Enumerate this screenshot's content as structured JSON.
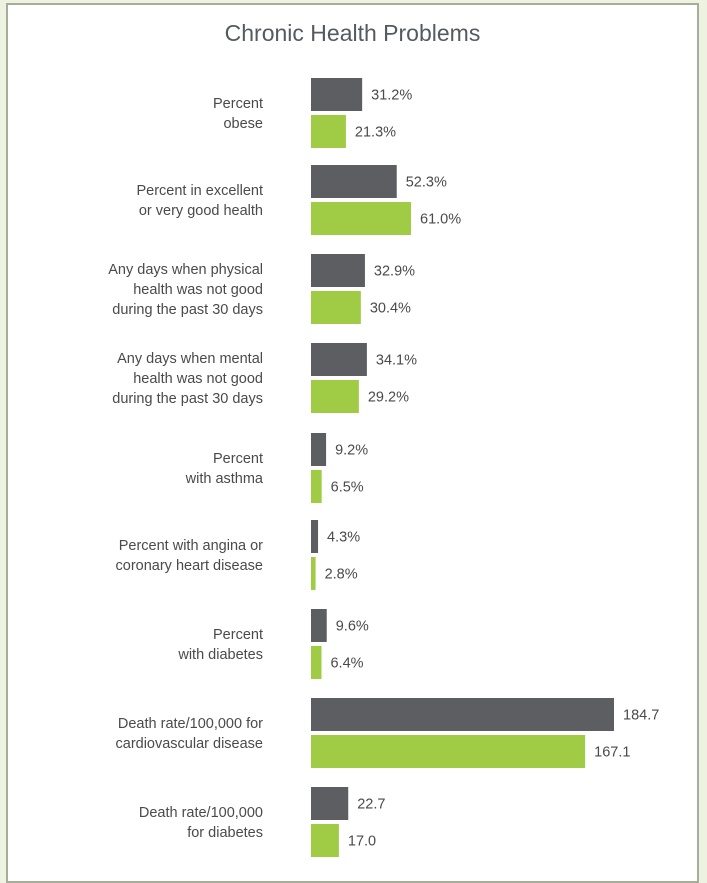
{
  "colors": {
    "page_background": "#eef3e1",
    "card_background": "#ffffff",
    "card_border": "#a8ad9a",
    "series_dark": "#5d5e62",
    "series_green": "#a0cb45",
    "text": "#4a4a4a"
  },
  "chart_data": {
    "type": "bar",
    "orientation": "horizontal",
    "title": "Chronic Health Problems",
    "xlabel": "",
    "ylabel": "",
    "grid": false,
    "legend": false,
    "categories": [
      [
        "Percent",
        "obese"
      ],
      [
        "Percent in excellent",
        "or very good health"
      ],
      [
        "Any days when physical",
        "health was not good",
        "during the past 30 days"
      ],
      [
        "Any days when mental",
        "health was not good",
        "during the past 30 days"
      ],
      [
        "Percent",
        "with asthma"
      ],
      [
        "Percent with angina or",
        "coronary heart disease"
      ],
      [
        "Percent",
        "with diabetes"
      ],
      [
        "Death rate/100,000 for",
        "cardiovascular disease"
      ],
      [
        "Death rate/100,000",
        "for diabetes"
      ]
    ],
    "series": [
      {
        "color": "#5d5e62",
        "values": [
          31.2,
          52.3,
          32.9,
          34.1,
          9.2,
          4.3,
          9.6,
          184.7,
          22.7
        ],
        "labels": [
          "31.2%",
          "52.3%",
          "32.9%",
          "34.1%",
          "9.2%",
          "4.3%",
          "9.6%",
          "184.7",
          "22.7"
        ]
      },
      {
        "color": "#a0cb45",
        "values": [
          21.3,
          61.0,
          30.4,
          29.2,
          6.5,
          2.8,
          6.4,
          167.1,
          17.0
        ],
        "labels": [
          "21.3%",
          "61.0%",
          "30.4%",
          "29.2%",
          "6.5%",
          "2.8%",
          "6.4%",
          "167.1",
          "17.0"
        ]
      }
    ]
  }
}
